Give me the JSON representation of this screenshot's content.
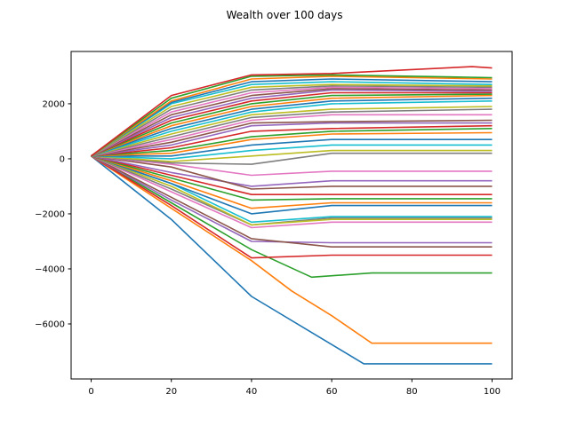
{
  "chart_data": {
    "type": "line",
    "title": "Wealth over 100 days",
    "xlabel": "",
    "ylabel": "",
    "xlim": [
      -5,
      105
    ],
    "ylim": [
      -8000,
      3900
    ],
    "x_ticks": [
      0,
      20,
      40,
      60,
      80,
      100
    ],
    "y_ticks": [
      -6000,
      -4000,
      -2000,
      0,
      2000
    ],
    "x_tick_labels": [
      "0",
      "20",
      "40",
      "60",
      "80",
      "100"
    ],
    "y_tick_labels": [
      "−6000",
      "−4000",
      "−2000",
      "0",
      "2000"
    ],
    "grid": false,
    "legend": "none",
    "palette": [
      "#1f77b4",
      "#ff7f0e",
      "#2ca02c",
      "#d62728",
      "#9467bd",
      "#8c564b",
      "#e377c2",
      "#7f7f7f",
      "#bcbd22",
      "#17becf"
    ],
    "series": [
      {
        "x": [
          0,
          20,
          40,
          68,
          100
        ],
        "y": [
          100,
          -2200,
          -5000,
          -7450,
          -7450
        ]
      },
      {
        "x": [
          0,
          20,
          40,
          50,
          60,
          70,
          100
        ],
        "y": [
          100,
          -1800,
          -3700,
          -4800,
          -5700,
          -6700,
          -6700
        ]
      },
      {
        "x": [
          0,
          20,
          40,
          55,
          70,
          100
        ],
        "y": [
          100,
          -1600,
          -3300,
          -4300,
          -4150,
          -4150
        ]
      },
      {
        "x": [
          0,
          20,
          40,
          60,
          100
        ],
        "y": [
          100,
          -1700,
          -3600,
          -3500,
          -3500
        ]
      },
      {
        "x": [
          0,
          20,
          40,
          60,
          100
        ],
        "y": [
          100,
          -1500,
          -3000,
          -3050,
          -3050
        ]
      },
      {
        "x": [
          0,
          20,
          40,
          60,
          100
        ],
        "y": [
          100,
          -1400,
          -2900,
          -3200,
          -3200
        ]
      },
      {
        "x": [
          0,
          20,
          40,
          60,
          100
        ],
        "y": [
          100,
          -1200,
          -2500,
          -2300,
          -2300
        ]
      },
      {
        "x": [
          0,
          20,
          40,
          60,
          100
        ],
        "y": [
          100,
          -1100,
          -2400,
          -2150,
          -2150
        ]
      },
      {
        "x": [
          0,
          20,
          40,
          60,
          100
        ],
        "y": [
          100,
          -1000,
          -2400,
          -2200,
          -2200
        ]
      },
      {
        "x": [
          0,
          20,
          40,
          60,
          100
        ],
        "y": [
          100,
          -900,
          -2300,
          -2100,
          -2100
        ]
      },
      {
        "x": [
          0,
          20,
          40,
          60,
          100
        ],
        "y": [
          100,
          -900,
          -2000,
          -1700,
          -1700
        ]
      },
      {
        "x": [
          0,
          20,
          40,
          60,
          100
        ],
        "y": [
          100,
          -800,
          -1800,
          -1600,
          -1600
        ]
      },
      {
        "x": [
          0,
          20,
          40,
          60,
          100
        ],
        "y": [
          100,
          -700,
          -1500,
          -1450,
          -1450
        ]
      },
      {
        "x": [
          0,
          20,
          40,
          60,
          100
        ],
        "y": [
          100,
          -600,
          -1300,
          -1300,
          -1300
        ]
      },
      {
        "x": [
          0,
          20,
          40,
          60,
          100
        ],
        "y": [
          100,
          -500,
          -1000,
          -800,
          -800
        ]
      },
      {
        "x": [
          0,
          20,
          40,
          60,
          100
        ],
        "y": [
          100,
          -300,
          -1100,
          -1000,
          -1000
        ]
      },
      {
        "x": [
          0,
          20,
          40,
          60,
          100
        ],
        "y": [
          100,
          -200,
          -600,
          -450,
          -450
        ]
      },
      {
        "x": [
          0,
          20,
          40,
          60,
          100
        ],
        "y": [
          100,
          -150,
          -200,
          200,
          200
        ]
      },
      {
        "x": [
          0,
          20,
          40,
          60,
          100
        ],
        "y": [
          100,
          -100,
          100,
          300,
          300
        ]
      },
      {
        "x": [
          0,
          20,
          40,
          60,
          100
        ],
        "y": [
          100,
          0,
          300,
          500,
          500
        ]
      },
      {
        "x": [
          0,
          20,
          40,
          60,
          100
        ],
        "y": [
          100,
          100,
          500,
          700,
          700
        ]
      },
      {
        "x": [
          0,
          20,
          40,
          60,
          100
        ],
        "y": [
          100,
          200,
          700,
          900,
          950
        ]
      },
      {
        "x": [
          0,
          20,
          40,
          60,
          100
        ],
        "y": [
          100,
          300,
          800,
          1000,
          1100
        ]
      },
      {
        "x": [
          0,
          20,
          40,
          60,
          100
        ],
        "y": [
          100,
          400,
          1000,
          1100,
          1200
        ]
      },
      {
        "x": [
          0,
          20,
          40,
          60,
          100
        ],
        "y": [
          100,
          500,
          1200,
          1300,
          1300
        ]
      },
      {
        "x": [
          0,
          20,
          40,
          60,
          100
        ],
        "y": [
          100,
          600,
          1300,
          1350,
          1400
        ]
      },
      {
        "x": [
          0,
          20,
          40,
          60,
          100
        ],
        "y": [
          100,
          700,
          1400,
          1600,
          1600
        ]
      },
      {
        "x": [
          0,
          20,
          40,
          60,
          100
        ],
        "y": [
          100,
          800,
          1500,
          1700,
          1800
        ]
      },
      {
        "x": [
          0,
          20,
          40,
          60,
          100
        ],
        "y": [
          100,
          900,
          1600,
          1800,
          1900
        ]
      },
      {
        "x": [
          0,
          20,
          40,
          60,
          100
        ],
        "y": [
          100,
          1000,
          1700,
          2000,
          2100
        ]
      },
      {
        "x": [
          0,
          20,
          40,
          60,
          100
        ],
        "y": [
          100,
          1100,
          1800,
          2100,
          2200
        ]
      },
      {
        "x": [
          0,
          20,
          40,
          60,
          100
        ],
        "y": [
          100,
          1200,
          1900,
          2200,
          2300
        ]
      },
      {
        "x": [
          0,
          20,
          40,
          60,
          100
        ],
        "y": [
          100,
          1300,
          2000,
          2300,
          2350
        ]
      },
      {
        "x": [
          0,
          20,
          40,
          60,
          100
        ],
        "y": [
          100,
          1400,
          2100,
          2400,
          2400
        ]
      },
      {
        "x": [
          0,
          20,
          40,
          60,
          100
        ],
        "y": [
          100,
          1500,
          2200,
          2500,
          2450
        ]
      },
      {
        "x": [
          0,
          20,
          40,
          60,
          100
        ],
        "y": [
          100,
          1600,
          2300,
          2550,
          2500
        ]
      },
      {
        "x": [
          0,
          20,
          40,
          60,
          100
        ],
        "y": [
          100,
          1700,
          2400,
          2600,
          2550
        ]
      },
      {
        "x": [
          0,
          20,
          40,
          60,
          100
        ],
        "y": [
          100,
          1800,
          2500,
          2650,
          2600
        ]
      },
      {
        "x": [
          0,
          20,
          40,
          60,
          100
        ],
        "y": [
          100,
          1900,
          2600,
          2700,
          2650
        ]
      },
      {
        "x": [
          0,
          20,
          40,
          60,
          100
        ],
        "y": [
          100,
          2000,
          2700,
          2800,
          2700
        ]
      },
      {
        "x": [
          0,
          20,
          40,
          60,
          100
        ],
        "y": [
          100,
          2050,
          2800,
          2900,
          2800
        ]
      },
      {
        "x": [
          0,
          20,
          40,
          60,
          100
        ],
        "y": [
          100,
          2100,
          2900,
          3000,
          2900
        ]
      },
      {
        "x": [
          0,
          20,
          40,
          60,
          100
        ],
        "y": [
          100,
          2200,
          3000,
          3050,
          2950
        ]
      },
      {
        "x": [
          0,
          20,
          40,
          60,
          95,
          100
        ],
        "y": [
          100,
          2300,
          3050,
          3100,
          3350,
          3300
        ]
      }
    ]
  }
}
